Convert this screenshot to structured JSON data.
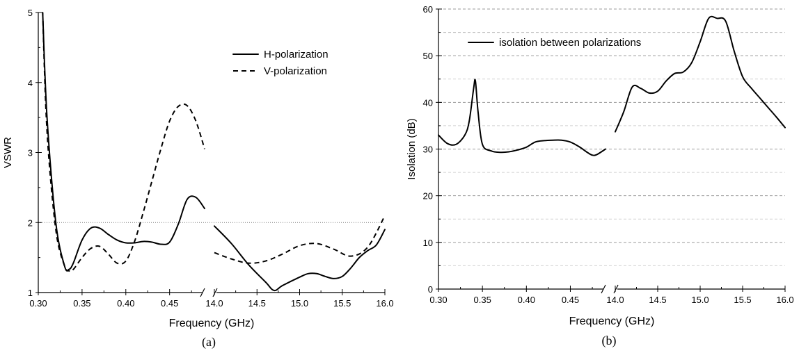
{
  "chart_data": [
    {
      "type": "line",
      "panel_label": "(a)",
      "xlabel": "Frequency (GHz)",
      "ylabel": "VSWR",
      "ylim": [
        1,
        5
      ],
      "y_ticks": [
        "1",
        "2",
        "3",
        "4",
        "5"
      ],
      "broken_x_axis": true,
      "x_segments": [
        {
          "range": [
            0.3,
            0.49
          ],
          "ticks": [
            "0.30",
            "0.35",
            "0.40",
            "0.45"
          ]
        },
        {
          "range": [
            14.0,
            16.0
          ],
          "ticks": [
            "14.0",
            "14.5",
            "15.0",
            "15.5",
            "16.0"
          ]
        }
      ],
      "reference_line": {
        "y": 2,
        "style": "dotted"
      },
      "legend_position": "top-right",
      "series": [
        {
          "name": "H-polarization",
          "style": "solid",
          "segments": [
            {
              "x": [
                0.305,
                0.31,
                0.32,
                0.33,
                0.335,
                0.34,
                0.35,
                0.36,
                0.37,
                0.38,
                0.39,
                0.4,
                0.41,
                0.42,
                0.43,
                0.44,
                0.45,
                0.46,
                0.47,
                0.48,
                0.49
              ],
              "y": [
                5.0,
                3.5,
                2.0,
                1.38,
                1.33,
                1.42,
                1.75,
                1.92,
                1.92,
                1.83,
                1.75,
                1.71,
                1.71,
                1.73,
                1.72,
                1.69,
                1.72,
                1.98,
                2.33,
                2.36,
                2.2
              ]
            },
            {
              "x": [
                14.0,
                14.2,
                14.4,
                14.6,
                14.7,
                14.8,
                15.0,
                15.1,
                15.2,
                15.3,
                15.4,
                15.5,
                15.6,
                15.7,
                15.8,
                15.9,
                16.0
              ],
              "y": [
                1.95,
                1.7,
                1.4,
                1.15,
                1.03,
                1.1,
                1.22,
                1.27,
                1.27,
                1.23,
                1.2,
                1.23,
                1.35,
                1.5,
                1.6,
                1.68,
                1.9
              ]
            }
          ]
        },
        {
          "name": "V-polarization",
          "style": "dashed",
          "segments": [
            {
              "x": [
                0.305,
                0.31,
                0.32,
                0.33,
                0.335,
                0.34,
                0.35,
                0.36,
                0.37,
                0.38,
                0.39,
                0.4,
                0.41,
                0.42,
                0.43,
                0.44,
                0.45,
                0.46,
                0.47,
                0.48,
                0.49
              ],
              "y": [
                5.0,
                3.3,
                1.9,
                1.38,
                1.31,
                1.33,
                1.5,
                1.63,
                1.66,
                1.55,
                1.42,
                1.45,
                1.73,
                2.15,
                2.6,
                3.05,
                3.45,
                3.66,
                3.67,
                3.45,
                3.05
              ]
            },
            {
              "x": [
                14.0,
                14.2,
                14.4,
                14.6,
                14.8,
                15.0,
                15.2,
                15.4,
                15.6,
                15.8,
                16.0
              ],
              "y": [
                1.57,
                1.48,
                1.42,
                1.45,
                1.55,
                1.67,
                1.7,
                1.62,
                1.52,
                1.65,
                2.1
              ]
            }
          ]
        }
      ]
    },
    {
      "type": "line",
      "panel_label": "(b)",
      "xlabel": "Frequency (GHz)",
      "ylabel": "Isolation (dB)",
      "ylim": [
        0,
        60
      ],
      "y_ticks": [
        "0",
        "10",
        "20",
        "30",
        "40",
        "50",
        "60"
      ],
      "grid": "horizontal-dashed",
      "broken_x_axis": true,
      "x_segments": [
        {
          "range": [
            0.3,
            0.49
          ],
          "ticks": [
            "0.30",
            "0.35",
            "0.40",
            "0.45"
          ]
        },
        {
          "range": [
            14.0,
            16.0
          ],
          "ticks": [
            "14.0",
            "14.5",
            "15.0",
            "15.5",
            "16.0"
          ]
        }
      ],
      "legend_position": "top-left",
      "series": [
        {
          "name": "isolation between polarizations",
          "style": "solid",
          "segments": [
            {
              "x": [
                0.3,
                0.31,
                0.32,
                0.33,
                0.335,
                0.34,
                0.342,
                0.345,
                0.35,
                0.36,
                0.37,
                0.38,
                0.39,
                0.4,
                0.41,
                0.42,
                0.43,
                0.44,
                0.45,
                0.46,
                0.47,
                0.475,
                0.48,
                0.49
              ],
              "y": [
                33,
                31.2,
                31,
                33,
                36,
                43,
                44.6,
                38,
                31,
                29.6,
                29.3,
                29.4,
                29.8,
                30.4,
                31.5,
                31.8,
                31.9,
                31.9,
                31.5,
                30.5,
                29.2,
                28.7,
                28.8,
                30.0
              ]
            },
            {
              "x": [
                14.0,
                14.1,
                14.2,
                14.3,
                14.4,
                14.5,
                14.6,
                14.7,
                14.8,
                14.9,
                15.0,
                15.1,
                15.2,
                15.3,
                15.4,
                15.5,
                15.6,
                15.7,
                15.8,
                15.9,
                16.0
              ],
              "y": [
                33.7,
                38,
                43.3,
                43,
                42,
                42.4,
                44.6,
                46.2,
                46.5,
                48.5,
                53,
                58,
                58,
                57.4,
                51,
                45.5,
                43.1,
                41,
                38.9,
                36.8,
                34.6
              ]
            }
          ]
        }
      ]
    }
  ]
}
